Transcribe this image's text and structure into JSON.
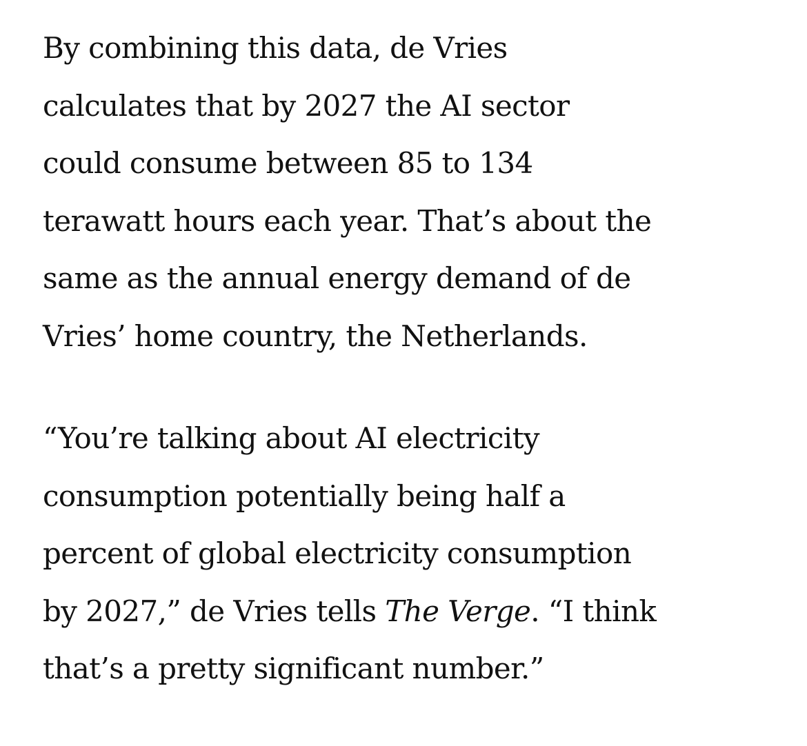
{
  "paragraphs": [
    {
      "lines": [
        [
          {
            "text": "By combining this data, de Vries"
          }
        ],
        [
          {
            "text": "calculates that by 2027 the AI sector"
          }
        ],
        [
          {
            "text": "could consume between 85 to 134"
          }
        ],
        [
          {
            "text": "terawatt hours each year. That’s about the"
          }
        ],
        [
          {
            "text": "same as the annual energy demand of de"
          }
        ],
        [
          {
            "text": "Vries’ home country, the Netherlands."
          }
        ]
      ]
    },
    {
      "lines": [
        [
          {
            "text": "“You’re talking about AI electricity"
          }
        ],
        [
          {
            "text": "consumption potentially being half a"
          }
        ],
        [
          {
            "text": "percent of global electricity consumption"
          }
        ],
        [
          {
            "text": "by 2027,” de Vries tells "
          },
          {
            "text": "The Verge",
            "italic": true
          },
          {
            "text": ". “I think"
          }
        ],
        [
          {
            "text": "that’s a pretty significant number.”"
          }
        ]
      ]
    }
  ]
}
